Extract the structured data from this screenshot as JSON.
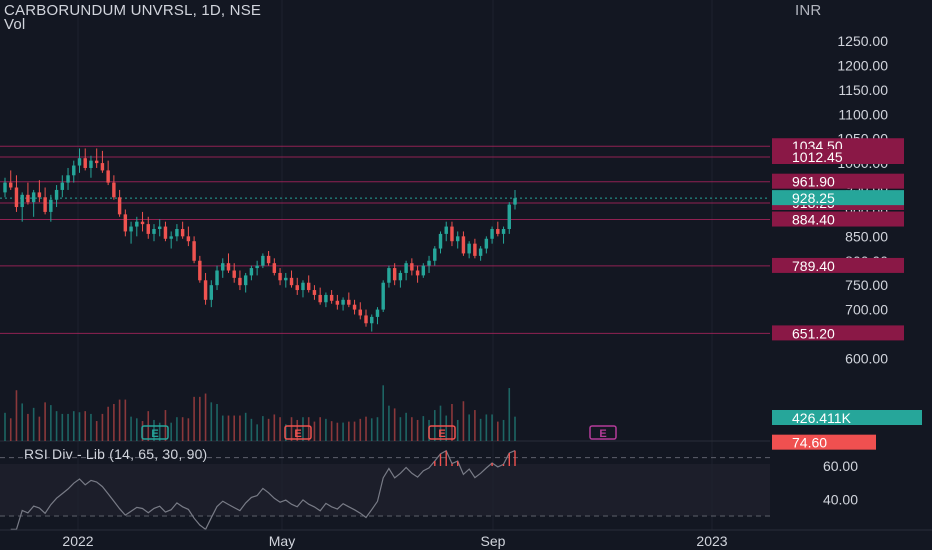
{
  "header": {
    "title": "CARBORUNDUM UNVRSL, 1D, NSE",
    "vol_label": "Vol",
    "currency": "INR"
  },
  "colors": {
    "background": "#131722",
    "up": "#26a69a",
    "down": "#ef5350",
    "level_line": "#b0245f",
    "level_label": "#8a1846",
    "last_price": "#26a69a",
    "volume_label": "#26a69a",
    "rsi_label": "#f05050",
    "rsi_line": "#787b86",
    "rsi_band": "#1c1e2a",
    "axis_text": "#d1d4dc"
  },
  "chart_data": [
    {
      "type": "candlestick",
      "title": "CARBORUNDUM UNVRSL, 1D, NSE",
      "ylabel": "INR",
      "ylim": [
        600,
        1300
      ],
      "y_ticks": [
        600,
        650,
        700,
        750,
        800,
        850,
        900,
        950,
        1000,
        1050,
        1100,
        1150,
        1200,
        1250
      ],
      "x_ticks": [
        "2022",
        "May",
        "Sep",
        "2023"
      ],
      "horizontal_levels": [
        1034.5,
        1012.45,
        961.9,
        918.25,
        884.4,
        789.4,
        651.2
      ],
      "last_price": 928.25,
      "series": [
        {
          "ohlc_approx": [
            [
              940,
              970,
              930,
              960
            ],
            [
              960,
              985,
              945,
              950
            ],
            [
              950,
              975,
              900,
              910
            ],
            [
              910,
              940,
              880,
              935
            ],
            [
              935,
              960,
              915,
              920
            ],
            [
              920,
              945,
              890,
              940
            ],
            [
              940,
              965,
              920,
              930
            ],
            [
              930,
              950,
              895,
              900
            ],
            [
              900,
              935,
              880,
              925
            ],
            [
              925,
              955,
              910,
              945
            ],
            [
              945,
              975,
              930,
              960
            ],
            [
              960,
              990,
              945,
              975
            ],
            [
              975,
              1005,
              960,
              995
            ],
            [
              995,
              1030,
              980,
              1010
            ],
            [
              1010,
              1030,
              985,
              990
            ],
            [
              990,
              1015,
              970,
              1005
            ],
            [
              1005,
              1030,
              990,
              1000
            ],
            [
              1000,
              1025,
              980,
              985
            ],
            [
              985,
              1005,
              955,
              960
            ],
            [
              960,
              975,
              925,
              930
            ],
            [
              930,
              945,
              890,
              895
            ],
            [
              895,
              905,
              850,
              860
            ],
            [
              860,
              880,
              835,
              870
            ],
            [
              870,
              890,
              850,
              880
            ],
            [
              880,
              900,
              860,
              875
            ],
            [
              875,
              890,
              845,
              855
            ],
            [
              855,
              875,
              840,
              865
            ],
            [
              865,
              885,
              850,
              870
            ],
            [
              870,
              880,
              840,
              845
            ],
            [
              845,
              860,
              825,
              850
            ],
            [
              850,
              875,
              840,
              865
            ],
            [
              865,
              880,
              845,
              850
            ],
            [
              850,
              870,
              830,
              840
            ],
            [
              840,
              850,
              795,
              800
            ],
            [
              800,
              810,
              755,
              760
            ],
            [
              760,
              775,
              710,
              720
            ],
            [
              720,
              760,
              705,
              750
            ],
            [
              750,
              790,
              740,
              780
            ],
            [
              780,
              805,
              765,
              795
            ],
            [
              795,
              815,
              775,
              780
            ],
            [
              780,
              795,
              755,
              765
            ],
            [
              765,
              780,
              740,
              750
            ],
            [
              750,
              775,
              735,
              770
            ],
            [
              770,
              790,
              760,
              785
            ],
            [
              785,
              800,
              770,
              790
            ],
            [
              790,
              815,
              785,
              810
            ],
            [
              810,
              820,
              790,
              795
            ],
            [
              795,
              805,
              770,
              775
            ],
            [
              775,
              785,
              750,
              760
            ],
            [
              760,
              775,
              745,
              765
            ],
            [
              765,
              780,
              745,
              750
            ],
            [
              750,
              765,
              730,
              740
            ],
            [
              740,
              760,
              725,
              755
            ],
            [
              755,
              770,
              735,
              740
            ],
            [
              740,
              750,
              720,
              730
            ],
            [
              730,
              745,
              710,
              715
            ],
            [
              715,
              735,
              705,
              730
            ],
            [
              730,
              740,
              712,
              718
            ],
            [
              718,
              730,
              700,
              710
            ],
            [
              710,
              725,
              698,
              720
            ],
            [
              720,
              735,
              705,
              710
            ],
            [
              710,
              720,
              690,
              700
            ],
            [
              700,
              715,
              680,
              688
            ],
            [
              688,
              700,
              665,
              672
            ],
            [
              672,
              690,
              655,
              685
            ],
            [
              685,
              705,
              670,
              700
            ],
            [
              700,
              760,
              695,
              755
            ],
            [
              755,
              790,
              745,
              785
            ],
            [
              785,
              795,
              750,
              760
            ],
            [
              760,
              780,
              745,
              775
            ],
            [
              775,
              800,
              760,
              795
            ],
            [
              795,
              805,
              770,
              780
            ],
            [
              780,
              790,
              755,
              770
            ],
            [
              770,
              795,
              765,
              790
            ],
            [
              790,
              810,
              775,
              800
            ],
            [
              800,
              830,
              790,
              825
            ],
            [
              825,
              860,
              815,
              855
            ],
            [
              855,
              880,
              840,
              870
            ],
            [
              870,
              880,
              830,
              840
            ],
            [
              840,
              860,
              825,
              850
            ],
            [
              850,
              860,
              810,
              815
            ],
            [
              815,
              840,
              805,
              835
            ],
            [
              835,
              845,
              805,
              810
            ],
            [
              810,
              830,
              800,
              825
            ],
            [
              825,
              850,
              815,
              845
            ],
            [
              845,
              870,
              835,
              865
            ],
            [
              865,
              880,
              850,
              855
            ],
            [
              855,
              870,
              835,
              865
            ],
            [
              865,
              920,
              855,
              915
            ],
            [
              915,
              945,
              905,
              928
            ]
          ]
        }
      ]
    },
    {
      "type": "bar",
      "title": "Vol",
      "last_value_label": "426.411K",
      "earnings_markers": [
        "E",
        "E",
        "E",
        "E"
      ]
    },
    {
      "type": "line",
      "title": "RSI Div - Lib (14, 65, 30, 90)",
      "ylim": [
        20,
        80
      ],
      "y_ticks": [
        40.0,
        60.0
      ],
      "bands": [
        65,
        30
      ],
      "last_value": 74.6
    }
  ]
}
